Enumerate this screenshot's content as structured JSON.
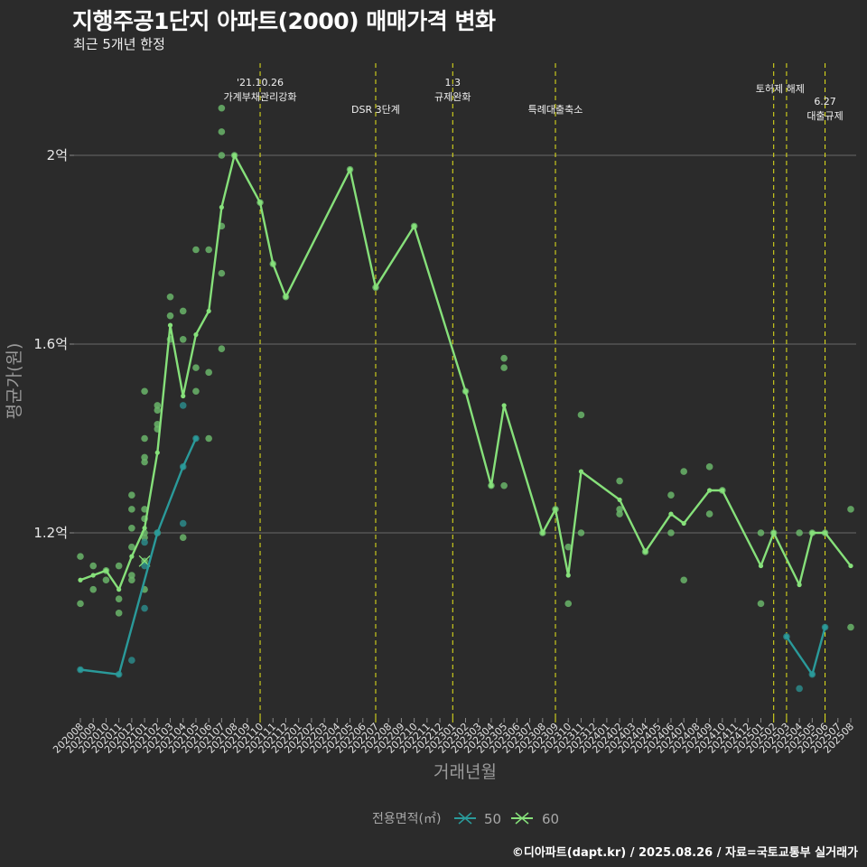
{
  "title": "지행주공1단지 아파트(2000) 매매가격 변화",
  "subtitle": "최근 5개년 한정",
  "caption": "©디아파트(dapt.kr) / 2025.08.26 / 자료=국토교통부 실거래가",
  "colors": {
    "background": "#2b2b2b",
    "grid": "#6a6a6a",
    "series_50": "#2a9a9a",
    "series_60": "#86e07a",
    "points_60": "#6ab56a",
    "points_50": "#2b8a8a",
    "event_line": "#e6e61a"
  },
  "chart_data": {
    "type": "line",
    "title": "지행주공1단지 아파트(2000) 매매가격 변화",
    "subtitle": "최근 5개년 한정",
    "xlabel": "거래년월",
    "ylabel": "평균가(원)",
    "categories": [
      "202008",
      "202009",
      "202010",
      "202011",
      "202012",
      "202101",
      "202102",
      "202103",
      "202104",
      "202105",
      "202106",
      "202107",
      "202108",
      "202109",
      "202110",
      "202111",
      "202112",
      "202201",
      "202202",
      "202203",
      "202204",
      "202205",
      "202206",
      "202207",
      "202208",
      "202209",
      "202210",
      "202211",
      "202212",
      "202301",
      "202302",
      "202303",
      "202304",
      "202305",
      "202306",
      "202307",
      "202308",
      "202309",
      "202310",
      "202311",
      "202312",
      "202401",
      "202402",
      "202403",
      "202404",
      "202405",
      "202406",
      "202407",
      "202408",
      "202409",
      "202410",
      "202411",
      "202412",
      "202501",
      "202502",
      "202503",
      "202504",
      "202505",
      "202506",
      "202507",
      "202508"
    ],
    "ylim": [
      0.77,
      2.31
    ],
    "yticks": [
      {
        "value": 1.2,
        "label": "1.2억"
      },
      {
        "value": 1.6,
        "label": "1.6억"
      },
      {
        "value": 2.0,
        "label": "2억"
      }
    ],
    "grid": true,
    "unit": "억",
    "legend": {
      "title": "전용면적(㎡)",
      "position": "bottom",
      "entries": [
        "50",
        "60"
      ]
    },
    "series": [
      {
        "name": "50",
        "points": [
          {
            "x": "202008",
            "y": 0.91
          },
          {
            "x": "202011",
            "y": 0.9
          },
          {
            "x": "202102",
            "y": 1.2
          },
          {
            "x": "202104",
            "y": 1.34
          },
          {
            "x": "202105",
            "y": 1.4
          },
          {
            "x": "202503",
            "y": 0.98
          },
          {
            "x": "202505",
            "y": 0.9
          },
          {
            "x": "202506",
            "y": 1.0
          }
        ],
        "segments": [
          [
            "202008",
            "202011",
            "202102",
            "202104",
            "202105"
          ],
          [
            "202503",
            "202505",
            "202506"
          ]
        ]
      },
      {
        "name": "60",
        "points": [
          {
            "x": "202008",
            "y": 1.1
          },
          {
            "x": "202009",
            "y": 1.11
          },
          {
            "x": "202010",
            "y": 1.12
          },
          {
            "x": "202011",
            "y": 1.08
          },
          {
            "x": "202012",
            "y": 1.15
          },
          {
            "x": "202101",
            "y": 1.21
          },
          {
            "x": "202102",
            "y": 1.37
          },
          {
            "x": "202103",
            "y": 1.64
          },
          {
            "x": "202104",
            "y": 1.49
          },
          {
            "x": "202105",
            "y": 1.62
          },
          {
            "x": "202106",
            "y": 1.67
          },
          {
            "x": "202107",
            "y": 1.89
          },
          {
            "x": "202108",
            "y": 2.0
          },
          {
            "x": "202110",
            "y": 1.9
          },
          {
            "x": "202111",
            "y": 1.77
          },
          {
            "x": "202112",
            "y": 1.7
          },
          {
            "x": "202205",
            "y": 1.97
          },
          {
            "x": "202207",
            "y": 1.72
          },
          {
            "x": "202210",
            "y": 1.85
          },
          {
            "x": "202302",
            "y": 1.5
          },
          {
            "x": "202304",
            "y": 1.3
          },
          {
            "x": "202305",
            "y": 1.47
          },
          {
            "x": "202308",
            "y": 1.2
          },
          {
            "x": "202309",
            "y": 1.25
          },
          {
            "x": "202310",
            "y": 1.11
          },
          {
            "x": "202311",
            "y": 1.33
          },
          {
            "x": "202402",
            "y": 1.27
          },
          {
            "x": "202404",
            "y": 1.16
          },
          {
            "x": "202406",
            "y": 1.24
          },
          {
            "x": "202407",
            "y": 1.22
          },
          {
            "x": "202409",
            "y": 1.29
          },
          {
            "x": "202410",
            "y": 1.29
          },
          {
            "x": "202501",
            "y": 1.13
          },
          {
            "x": "202502",
            "y": 1.2
          },
          {
            "x": "202504",
            "y": 1.09
          },
          {
            "x": "202505",
            "y": 1.2
          },
          {
            "x": "202506",
            "y": 1.2
          },
          {
            "x": "202508",
            "y": 1.13
          }
        ],
        "segments": [
          [
            "202008",
            "202009",
            "202010",
            "202011",
            "202012",
            "202101",
            "202102",
            "202103",
            "202104",
            "202105",
            "202106",
            "202107",
            "202108",
            "202110",
            "202111",
            "202112",
            "202205",
            "202207",
            "202210",
            "202302",
            "202304",
            "202305",
            "202308",
            "202309",
            "202310",
            "202311",
            "202402",
            "202404",
            "202406",
            "202407",
            "202409",
            "202410",
            "202501",
            "202502",
            "202504",
            "202505",
            "202506",
            "202508"
          ]
        ]
      }
    ],
    "scatter_60": [
      {
        "x": "202008",
        "y": 1.15
      },
      {
        "x": "202008",
        "y": 1.05
      },
      {
        "x": "202009",
        "y": 1.13
      },
      {
        "x": "202009",
        "y": 1.08
      },
      {
        "x": "202010",
        "y": 1.12
      },
      {
        "x": "202010",
        "y": 1.1
      },
      {
        "x": "202011",
        "y": 1.13
      },
      {
        "x": "202011",
        "y": 1.06
      },
      {
        "x": "202011",
        "y": 1.03
      },
      {
        "x": "202012",
        "y": 1.28
      },
      {
        "x": "202012",
        "y": 1.25
      },
      {
        "x": "202012",
        "y": 1.21
      },
      {
        "x": "202012",
        "y": 1.17
      },
      {
        "x": "202012",
        "y": 1.11
      },
      {
        "x": "202012",
        "y": 1.1
      },
      {
        "x": "202101",
        "y": 1.5
      },
      {
        "x": "202101",
        "y": 1.4
      },
      {
        "x": "202101",
        "y": 1.36
      },
      {
        "x": "202101",
        "y": 1.35
      },
      {
        "x": "202101",
        "y": 1.25
      },
      {
        "x": "202101",
        "y": 1.23
      },
      {
        "x": "202101",
        "y": 1.2
      },
      {
        "x": "202101",
        "y": 1.19
      },
      {
        "x": "202101",
        "y": 1.14
      },
      {
        "x": "202101",
        "y": 1.08
      },
      {
        "x": "202102",
        "y": 1.47
      },
      {
        "x": "202102",
        "y": 1.46
      },
      {
        "x": "202102",
        "y": 1.43
      },
      {
        "x": "202102",
        "y": 1.42
      },
      {
        "x": "202102",
        "y": 1.2
      },
      {
        "x": "202103",
        "y": 1.7
      },
      {
        "x": "202103",
        "y": 1.66
      },
      {
        "x": "202103",
        "y": 1.61
      },
      {
        "x": "202104",
        "y": 1.67
      },
      {
        "x": "202104",
        "y": 1.61
      },
      {
        "x": "202104",
        "y": 1.19
      },
      {
        "x": "202105",
        "y": 1.8
      },
      {
        "x": "202105",
        "y": 1.55
      },
      {
        "x": "202105",
        "y": 1.5
      },
      {
        "x": "202106",
        "y": 1.8
      },
      {
        "x": "202106",
        "y": 1.54
      },
      {
        "x": "202106",
        "y": 1.4
      },
      {
        "x": "202107",
        "y": 2.1
      },
      {
        "x": "202107",
        "y": 2.05
      },
      {
        "x": "202107",
        "y": 2.0
      },
      {
        "x": "202107",
        "y": 1.85
      },
      {
        "x": "202107",
        "y": 1.75
      },
      {
        "x": "202107",
        "y": 1.59
      },
      {
        "x": "202108",
        "y": 2.0
      },
      {
        "x": "202110",
        "y": 1.9
      },
      {
        "x": "202111",
        "y": 1.77
      },
      {
        "x": "202112",
        "y": 1.7
      },
      {
        "x": "202205",
        "y": 1.97
      },
      {
        "x": "202207",
        "y": 1.72
      },
      {
        "x": "202210",
        "y": 1.85
      },
      {
        "x": "202302",
        "y": 1.5
      },
      {
        "x": "202304",
        "y": 1.3
      },
      {
        "x": "202305",
        "y": 1.57
      },
      {
        "x": "202305",
        "y": 1.55
      },
      {
        "x": "202305",
        "y": 1.3
      },
      {
        "x": "202308",
        "y": 1.2
      },
      {
        "x": "202309",
        "y": 1.25
      },
      {
        "x": "202310",
        "y": 1.17
      },
      {
        "x": "202310",
        "y": 1.05
      },
      {
        "x": "202311",
        "y": 1.45
      },
      {
        "x": "202311",
        "y": 1.2
      },
      {
        "x": "202402",
        "y": 1.31
      },
      {
        "x": "202402",
        "y": 1.25
      },
      {
        "x": "202402",
        "y": 1.24
      },
      {
        "x": "202404",
        "y": 1.16
      },
      {
        "x": "202406",
        "y": 1.28
      },
      {
        "x": "202406",
        "y": 1.2
      },
      {
        "x": "202407",
        "y": 1.33
      },
      {
        "x": "202407",
        "y": 1.1
      },
      {
        "x": "202409",
        "y": 1.34
      },
      {
        "x": "202409",
        "y": 1.24
      },
      {
        "x": "202410",
        "y": 1.29
      },
      {
        "x": "202501",
        "y": 1.2
      },
      {
        "x": "202501",
        "y": 1.05
      },
      {
        "x": "202502",
        "y": 1.2
      },
      {
        "x": "202504",
        "y": 1.2
      },
      {
        "x": "202505",
        "y": 1.2
      },
      {
        "x": "202506",
        "y": 1.2
      },
      {
        "x": "202508",
        "y": 1.25
      },
      {
        "x": "202508",
        "y": 1.0
      }
    ],
    "scatter_50": [
      {
        "x": "202008",
        "y": 0.91
      },
      {
        "x": "202011",
        "y": 0.9
      },
      {
        "x": "202012",
        "y": 0.93
      },
      {
        "x": "202101",
        "y": 1.18
      },
      {
        "x": "202101",
        "y": 1.13
      },
      {
        "x": "202101",
        "y": 1.04
      },
      {
        "x": "202102",
        "y": 1.2
      },
      {
        "x": "202104",
        "y": 1.47
      },
      {
        "x": "202104",
        "y": 1.34
      },
      {
        "x": "202104",
        "y": 1.22
      },
      {
        "x": "202105",
        "y": 1.4
      },
      {
        "x": "202503",
        "y": 0.98
      },
      {
        "x": "202504",
        "y": 0.87
      },
      {
        "x": "202505",
        "y": 0.9
      },
      {
        "x": "202506",
        "y": 1.0
      }
    ],
    "cross_markers": [
      {
        "series": "60",
        "x": "202101",
        "y": 1.14
      }
    ],
    "events": [
      {
        "x": "202110",
        "lines": [
          "'21.10.26",
          "가계부채관리강화"
        ],
        "level": 1
      },
      {
        "x": "202207",
        "lines": [
          "DSR 3단계"
        ],
        "level": 3
      },
      {
        "x": "202301",
        "lines": [
          "1.3",
          "규제완화"
        ],
        "level": 1
      },
      {
        "x": "202309",
        "lines": [
          "특례대출축소"
        ],
        "level": 3
      },
      {
        "x": "202502",
        "lines": [],
        "level": 0
      },
      {
        "x": "202503",
        "lines": [
          "토허제 해제"
        ],
        "level": 2,
        "anchor_between": true
      },
      {
        "x": "202506",
        "lines": [
          "6.27",
          "대출규제"
        ],
        "level": 4
      }
    ]
  }
}
